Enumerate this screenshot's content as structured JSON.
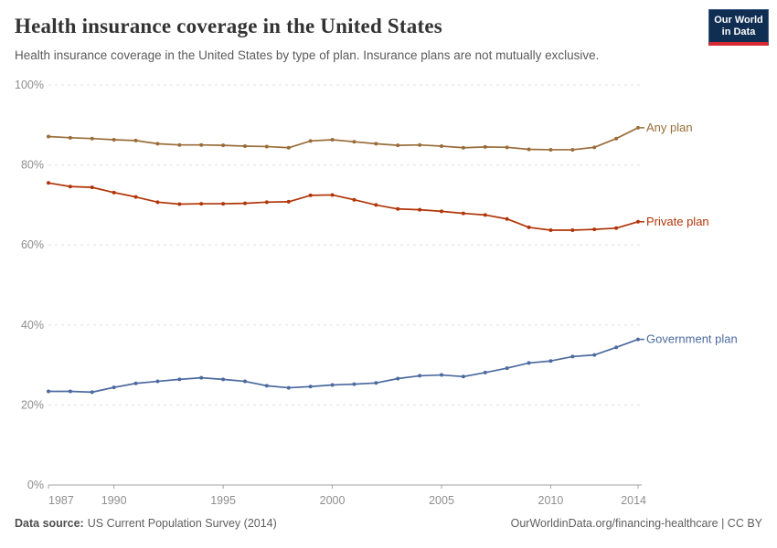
{
  "header": {
    "title": "Health insurance coverage in the United States",
    "subtitle": "Health insurance coverage in the United States by type of plan. Insurance plans are not mutually exclusive.",
    "logo": {
      "line1": "Our World",
      "line2": "in Data"
    }
  },
  "footer": {
    "datasource_label": "Data source:",
    "datasource_value": "US Current Population Survey (2014)",
    "credit": "OurWorldinData.org/financing-healthcare | CC BY"
  },
  "colors": {
    "logo_navy": "#102D52",
    "logo_red": "#D82832",
    "any_plan": "#996D39",
    "private_plan": "#B13507",
    "government_plan": "#4C6A9F"
  },
  "chart_data": {
    "type": "line",
    "title": "Health insurance coverage in the United States",
    "xlabel": "",
    "ylabel": "",
    "x": [
      1987,
      1988,
      1989,
      1990,
      1991,
      1992,
      1993,
      1994,
      1995,
      1996,
      1997,
      1998,
      1999,
      2000,
      2001,
      2002,
      2003,
      2004,
      2005,
      2006,
      2007,
      2008,
      2009,
      2010,
      2011,
      2012,
      2013,
      2014
    ],
    "series": [
      {
        "name": "Any plan",
        "color": "#996D39",
        "values": [
          87.1,
          86.8,
          86.6,
          86.3,
          86.1,
          85.3,
          85.0,
          85.0,
          84.9,
          84.7,
          84.6,
          84.3,
          86.0,
          86.3,
          85.8,
          85.3,
          84.9,
          85.0,
          84.7,
          84.3,
          84.5,
          84.4,
          83.9,
          83.8,
          83.8,
          84.4,
          86.6,
          89.3
        ]
      },
      {
        "name": "Private plan",
        "color": "#B13507",
        "values": [
          75.5,
          74.6,
          74.4,
          73.1,
          72.0,
          70.7,
          70.2,
          70.3,
          70.3,
          70.4,
          70.7,
          70.8,
          72.4,
          72.5,
          71.3,
          70.0,
          69.0,
          68.8,
          68.4,
          67.9,
          67.5,
          66.5,
          64.4,
          63.7,
          63.7,
          63.9,
          64.2,
          65.8
        ]
      },
      {
        "name": "Government plan",
        "color": "#4C6A9F",
        "values": [
          23.4,
          23.4,
          23.2,
          24.4,
          25.4,
          25.9,
          26.4,
          26.8,
          26.4,
          25.9,
          24.8,
          24.3,
          24.6,
          25.0,
          25.2,
          25.5,
          26.6,
          27.3,
          27.5,
          27.1,
          28.1,
          29.2,
          30.5,
          31.0,
          32.1,
          32.5,
          34.4,
          36.4
        ]
      }
    ],
    "xlim": [
      1987,
      2014
    ],
    "ylim": [
      0,
      100
    ],
    "xticks": [
      1987,
      1990,
      1995,
      2000,
      2005,
      2010,
      2014
    ],
    "yticks": [
      0,
      20,
      40,
      60,
      80,
      100
    ],
    "ytick_suffix": "%",
    "grid": "dashed-horizontal",
    "legend": "series-end-labels"
  }
}
